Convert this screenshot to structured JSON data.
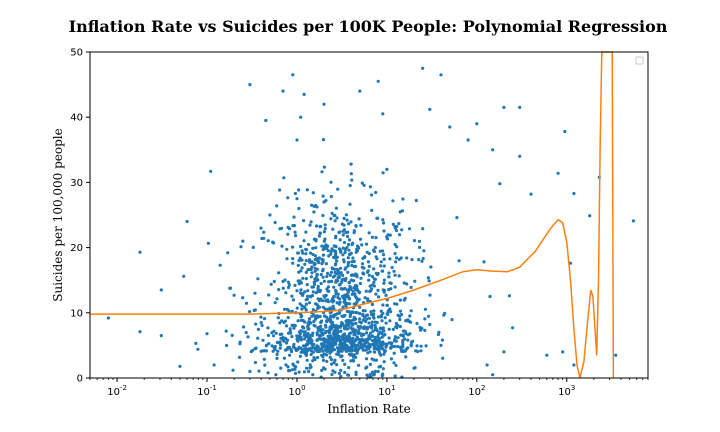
{
  "chart_data": {
    "type": "scatter",
    "title": "Inflation Rate vs Suicides per 100K People: Polynomial Regression",
    "xlabel": "Inflation Rate",
    "ylabel": "Suicides per 100,000 people",
    "xscale": "log",
    "xlim": [
      0.005,
      8000
    ],
    "ylim": [
      0,
      50
    ],
    "x_ticks": [
      0.01,
      0.1,
      1,
      10,
      100,
      1000
    ],
    "x_tick_labels": [
      "10^-2",
      "10^-1",
      "10^0",
      "10^1",
      "10^2",
      "10^3"
    ],
    "y_ticks": [
      0,
      10,
      20,
      30,
      40,
      50
    ],
    "y_tick_labels": [
      "0",
      "10",
      "20",
      "30",
      "40",
      "50"
    ],
    "legend": "top-right (empty)",
    "grid": false,
    "series": [
      {
        "type": "scatter",
        "color": "#1f77b4",
        "cluster_center": [
          3.0,
          12.0
        ],
        "points": [
          [
            0.008,
            9.2
          ],
          [
            0.018,
            19.3
          ],
          [
            0.018,
            7.1
          ],
          [
            0.031,
            6.5
          ],
          [
            0.031,
            13.5
          ],
          [
            0.055,
            15.6
          ],
          [
            0.06,
            24.0
          ],
          [
            0.05,
            1.8
          ],
          [
            0.075,
            5.3
          ],
          [
            0.1,
            6.8
          ],
          [
            0.11,
            31.7
          ],
          [
            0.12,
            2.0
          ],
          [
            0.14,
            17.3
          ],
          [
            0.17,
            19.2
          ],
          [
            0.2,
            12.7
          ],
          [
            0.3,
            45.0
          ],
          [
            0.45,
            39.5
          ],
          [
            0.7,
            44.0
          ],
          [
            0.9,
            46.5
          ],
          [
            1.2,
            43.5
          ],
          [
            1.1,
            40.0
          ],
          [
            1.0,
            36.5
          ],
          [
            2.0,
            42.0
          ],
          [
            5.0,
            44.0
          ],
          [
            8.0,
            45.5
          ],
          [
            9.0,
            40.5
          ],
          [
            25.0,
            47.5
          ],
          [
            30.0,
            41.2
          ],
          [
            40.0,
            46.5
          ],
          [
            50.0,
            38.5
          ],
          [
            80.0,
            36.5
          ],
          [
            100.0,
            39.0
          ],
          [
            150.0,
            35.0
          ],
          [
            200.0,
            41.5
          ],
          [
            300.0,
            41.5
          ],
          [
            180.0,
            29.8
          ],
          [
            300.0,
            34.0
          ],
          [
            400.0,
            28.2
          ],
          [
            800.0,
            31.4
          ],
          [
            950.0,
            37.8
          ],
          [
            1200.0,
            28.3
          ],
          [
            1100.0,
            17.6
          ],
          [
            1200.0,
            2.0
          ],
          [
            1800.0,
            24.9
          ],
          [
            2300.0,
            30.8
          ],
          [
            3500.0,
            3.5
          ],
          [
            5500.0,
            24.1
          ],
          [
            900.0,
            4.0
          ],
          [
            600.0,
            3.5
          ],
          [
            140.0,
            12.5
          ],
          [
            230.0,
            12.6
          ],
          [
            250.0,
            7.7
          ],
          [
            200.0,
            4.0
          ],
          [
            130.0,
            2.0
          ],
          [
            150.0,
            0.5
          ],
          [
            120.0,
            17.8
          ],
          [
            60.0,
            24.6
          ],
          [
            25.0,
            22.9
          ],
          [
            10.0,
            32.0
          ],
          [
            4.0,
            32.8
          ],
          [
            2.0,
            27.0
          ],
          [
            1.0,
            27.5
          ],
          [
            0.5,
            25.0
          ],
          [
            0.25,
            21.0
          ],
          [
            0.4,
            8.5
          ],
          [
            0.6,
            3.0
          ],
          [
            0.3,
            1.0
          ],
          [
            1.5,
            0.5
          ],
          [
            8.0,
            1.0
          ],
          [
            20.0,
            1.5
          ],
          [
            40.0,
            5.0
          ]
        ]
      },
      {
        "type": "line",
        "color": "#ff7f0e",
        "points": [
          [
            0.005,
            9.8
          ],
          [
            0.01,
            9.8
          ],
          [
            0.03,
            9.8
          ],
          [
            0.1,
            9.8
          ],
          [
            0.3,
            9.8
          ],
          [
            1.0,
            10.0
          ],
          [
            2.0,
            10.2
          ],
          [
            3.0,
            10.4
          ],
          [
            5.0,
            11.2
          ],
          [
            10.0,
            12.2
          ],
          [
            20.0,
            13.5
          ],
          [
            40.0,
            15.0
          ],
          [
            70.0,
            16.3
          ],
          [
            100.0,
            16.6
          ],
          [
            150.0,
            16.4
          ],
          [
            220.0,
            16.3
          ],
          [
            300.0,
            17.0
          ],
          [
            450.0,
            19.5
          ],
          [
            650.0,
            22.8
          ],
          [
            800.0,
            24.3
          ],
          [
            900.0,
            23.8
          ],
          [
            1000.0,
            20.8
          ],
          [
            1100.0,
            15.0
          ],
          [
            1200.0,
            7.5
          ],
          [
            1300.0,
            2.0
          ],
          [
            1400.0,
            0.0
          ],
          [
            1550.0,
            2.5
          ],
          [
            1700.0,
            8.5
          ],
          [
            1850.0,
            13.5
          ],
          [
            1950.0,
            12.5
          ],
          [
            2050.0,
            8.0
          ],
          [
            2150.0,
            3.5
          ],
          [
            2250.0,
            15.0
          ],
          [
            2350.0,
            35.0
          ],
          [
            2450.0,
            50.0
          ],
          [
            3200.0,
            50.0
          ],
          [
            3300.0,
            0.0
          ]
        ]
      }
    ]
  }
}
